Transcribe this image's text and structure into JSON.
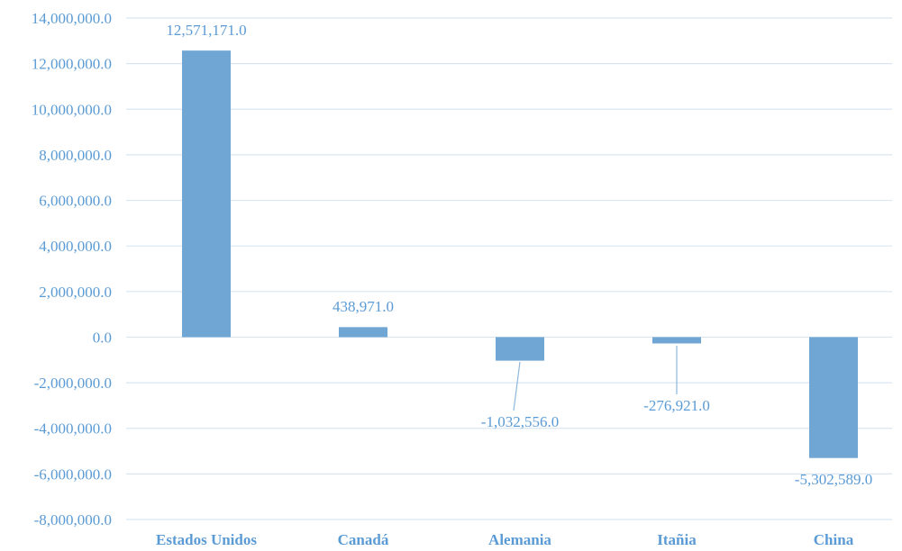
{
  "chart_data": {
    "type": "bar",
    "title": "",
    "xlabel": "",
    "ylabel": "",
    "categories": [
      "Estados Unidos",
      "Canadá",
      "Alemania",
      "Itañia",
      "China"
    ],
    "values": [
      12571171.0,
      438971.0,
      -1032556.0,
      -276921.0,
      -5302589.0
    ],
    "data_labels": [
      "12,571,171.0",
      "438,971.0",
      "-1,032,556.0",
      "-276,921.0",
      "-5,302,589.0"
    ],
    "ylim": [
      -8000000,
      14000000
    ],
    "yticks": [
      14000000,
      12000000,
      10000000,
      8000000,
      6000000,
      4000000,
      2000000,
      0,
      -2000000,
      -4000000,
      -6000000,
      -8000000
    ],
    "ytick_labels": [
      "14,000,000.0",
      "12,000,000.0",
      "10,000,000.0",
      "8,000,000.0",
      "6,000,000.0",
      "4,000,000.0",
      "2,000,000.0",
      "0.0",
      "-2,000,000.0",
      "-4,000,000.0",
      "-6,000,000.0",
      "-8,000,000.0"
    ],
    "grid": true,
    "legend": "none",
    "colors": {
      "bar": "#6fa6d3",
      "text": "#5b9bd5",
      "grid": "#d9e6f2"
    }
  }
}
